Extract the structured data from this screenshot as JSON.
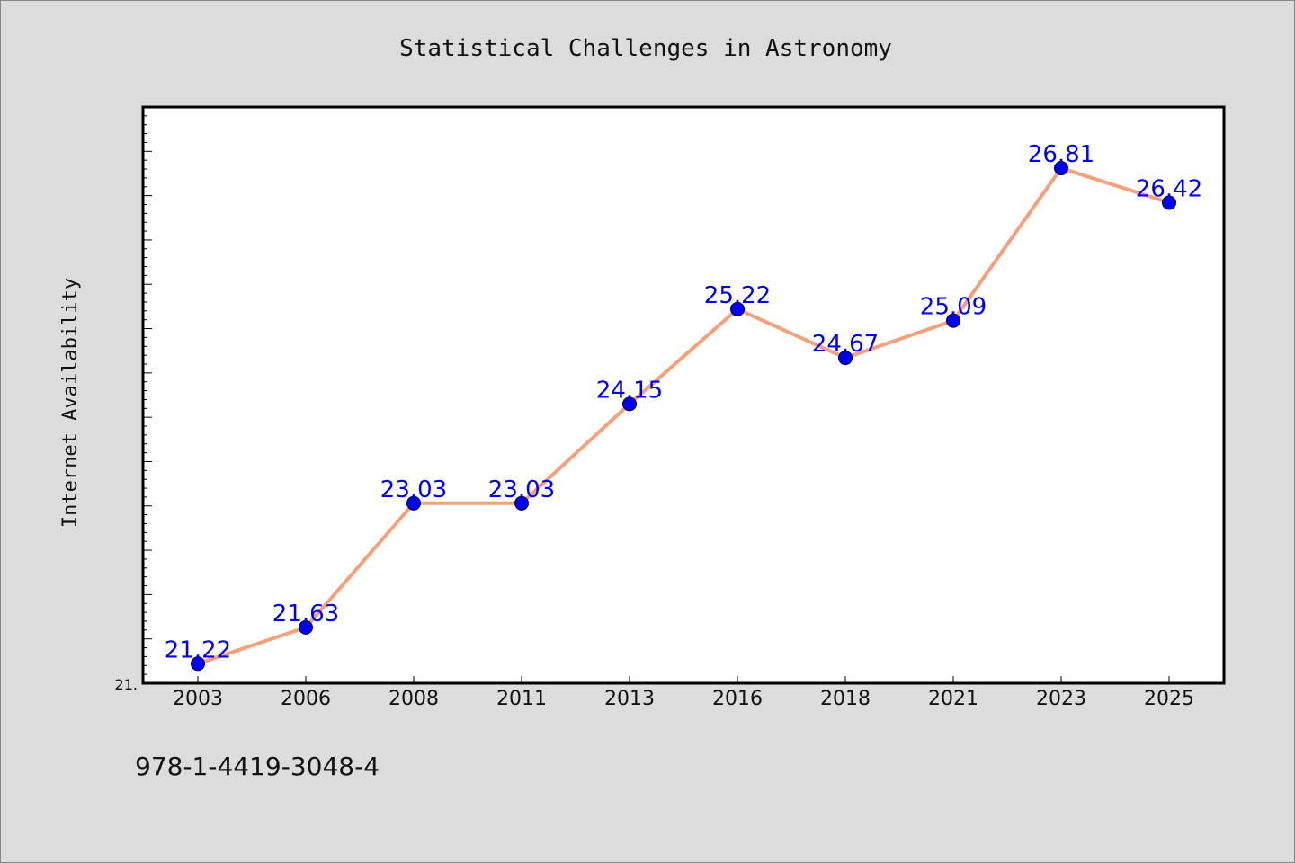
{
  "chart_data": {
    "type": "line",
    "title": "Statistical Challenges in Astronomy",
    "xlabel": "",
    "ylabel": "Internet Availability",
    "categories": [
      "2003",
      "2006",
      "2008",
      "2011",
      "2013",
      "2016",
      "2018",
      "2021",
      "2023",
      "2025"
    ],
    "series": [
      {
        "values": [
          21.22,
          21.63,
          23.03,
          23.03,
          24.15,
          25.22,
          24.67,
          25.09,
          26.81,
          26.42
        ]
      }
    ],
    "ylim": [
      21.0,
      27.5
    ],
    "ytick_label": "21.",
    "grid": false,
    "colors": {
      "line": "#f4a07c",
      "marker": "#0000ee",
      "data_label": "#0000ee",
      "plot_bg": "#ffffff",
      "page_bg": "#dcdcdc"
    }
  },
  "footer": {
    "isbn": "978-1-4419-3048-4"
  }
}
